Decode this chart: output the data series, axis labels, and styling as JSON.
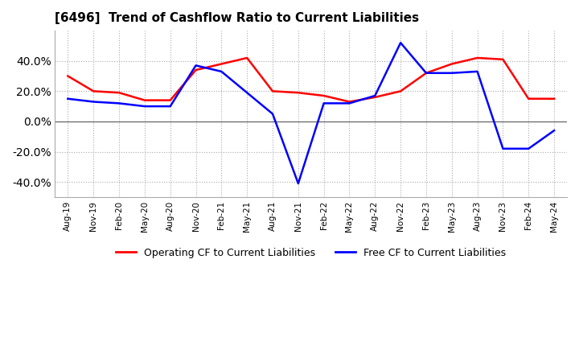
{
  "title": "[6496]  Trend of Cashflow Ratio to Current Liabilities",
  "x_labels": [
    "Aug-19",
    "Nov-19",
    "Feb-20",
    "May-20",
    "Aug-20",
    "Nov-20",
    "Feb-21",
    "May-21",
    "Aug-21",
    "Nov-21",
    "Feb-22",
    "May-22",
    "Aug-22",
    "Nov-22",
    "Feb-23",
    "May-23",
    "Aug-23",
    "Nov-23",
    "Feb-24",
    "May-24"
  ],
  "operating_cf": [
    30,
    20,
    19,
    14,
    14,
    34,
    38,
    42,
    20,
    19,
    17,
    13,
    16,
    20,
    32,
    38,
    42,
    41,
    15,
    15
  ],
  "free_cf": [
    15,
    13,
    12,
    10,
    10,
    37,
    33,
    19,
    5,
    -41,
    12,
    12,
    17,
    52,
    32,
    32,
    33,
    -18,
    -18,
    -6
  ],
  "operating_color": "#ff0000",
  "free_color": "#0000ff",
  "bg_color": "#ffffff",
  "plot_bg_color": "#ffffff",
  "ylim": [
    -50,
    60
  ],
  "yticks": [
    -40,
    -20,
    0,
    20,
    40
  ],
  "grid_color": "#aaaaaa",
  "legend_labels": [
    "Operating CF to Current Liabilities",
    "Free CF to Current Liabilities"
  ]
}
